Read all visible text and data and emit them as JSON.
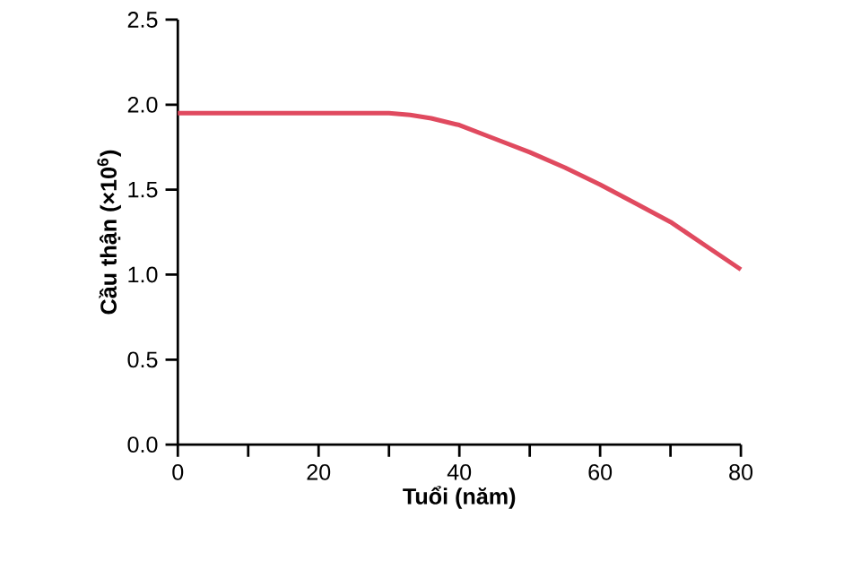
{
  "chart_data": {
    "type": "line",
    "xlabel": "Tuổi (năm)",
    "ylabel": "Cầu thận  (×10$^{6}$)",
    "x": [
      0,
      30,
      33,
      36,
      40,
      45,
      50,
      55,
      60,
      65,
      70,
      75,
      80
    ],
    "series": [
      {
        "color": "#e04a5f",
        "values": [
          1.95,
          1.95,
          1.94,
          1.92,
          1.88,
          1.8,
          1.72,
          1.63,
          1.53,
          1.42,
          1.31,
          1.17,
          1.03
        ]
      }
    ],
    "xlim": [
      0,
      80
    ],
    "xticks": [
      0,
      {
        "value": 10,
        "label": null
      },
      20,
      {
        "value": 30,
        "label": null
      },
      40,
      {
        "value": 50,
        "label": null
      },
      60,
      {
        "value": 70,
        "label": null
      },
      80
    ],
    "ylim": [
      0,
      2.5
    ],
    "yticks": [
      {
        "value": 0,
        "label": "0.0"
      },
      {
        "value": 0.5,
        "label": "0.5"
      },
      {
        "value": 1,
        "label": "1.0"
      },
      {
        "value": 1.5,
        "label": "1.5"
      },
      {
        "value": 2,
        "label": "2.0"
      },
      {
        "value": 2.5,
        "label": "2.5"
      }
    ],
    "grid": false,
    "marker": "none",
    "line_style": "solid"
  }
}
